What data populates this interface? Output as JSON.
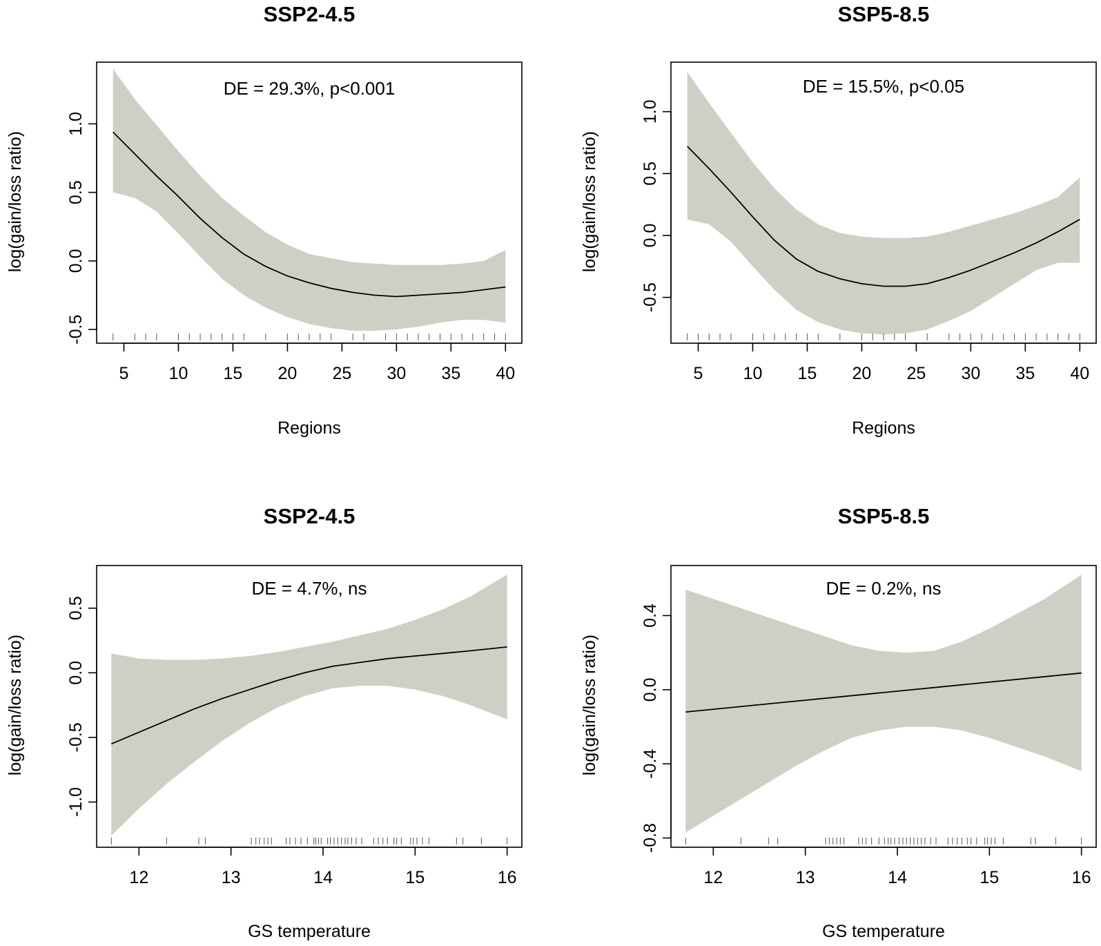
{
  "figure": {
    "background": "#ffffff"
  },
  "style": {
    "band_color": "#cfd0c5",
    "line_color": "#000000",
    "frame_color": "#000000",
    "rug_color": "#555555"
  },
  "chart_data": [
    {
      "type": "line",
      "panel_id": "p1",
      "title": "SSP2-4.5",
      "xlabel": "Regions",
      "ylabel": "log(gain/loss ratio)",
      "annotation": "DE = 29.3%, p<0.001",
      "xlim": [
        2.5,
        41.5
      ],
      "ylim": [
        -0.6,
        1.45
      ],
      "xticks": [
        5,
        10,
        15,
        20,
        25,
        30,
        35,
        40
      ],
      "yticks": [
        -0.5,
        0.0,
        0.5,
        1.0
      ],
      "ytick_labels": [
        "-0.5",
        "0.0",
        "0.5",
        "1.0"
      ],
      "series": [
        {
          "name": "fit",
          "x": [
            4,
            6,
            8,
            10,
            12,
            14,
            16,
            18,
            20,
            22,
            24,
            26,
            28,
            30,
            32,
            34,
            36,
            38,
            40
          ],
          "y": [
            0.94,
            0.78,
            0.62,
            0.47,
            0.31,
            0.17,
            0.05,
            -0.04,
            -0.11,
            -0.16,
            -0.2,
            -0.23,
            -0.25,
            -0.26,
            -0.25,
            -0.24,
            -0.23,
            -0.21,
            -0.19
          ]
        },
        {
          "name": "upper",
          "x": [
            4,
            6,
            8,
            10,
            12,
            14,
            16,
            18,
            20,
            22,
            24,
            26,
            28,
            30,
            32,
            34,
            36,
            38,
            40
          ],
          "y": [
            1.4,
            1.18,
            0.99,
            0.8,
            0.62,
            0.46,
            0.33,
            0.21,
            0.12,
            0.05,
            0.02,
            -0.01,
            -0.02,
            -0.03,
            -0.03,
            -0.03,
            -0.02,
            0.0,
            0.08
          ]
        },
        {
          "name": "lower",
          "x": [
            4,
            6,
            8,
            10,
            12,
            14,
            16,
            18,
            20,
            22,
            24,
            26,
            28,
            30,
            32,
            34,
            36,
            38,
            40
          ],
          "y": [
            0.5,
            0.46,
            0.36,
            0.2,
            0.03,
            -0.13,
            -0.25,
            -0.34,
            -0.41,
            -0.46,
            -0.49,
            -0.51,
            -0.51,
            -0.5,
            -0.48,
            -0.45,
            -0.43,
            -0.43,
            -0.45
          ]
        }
      ],
      "rug": [
        4,
        6,
        7,
        8,
        10,
        11,
        12,
        13,
        14,
        15,
        16,
        18,
        20,
        21,
        22,
        23,
        24,
        26,
        27,
        29,
        30,
        31,
        32,
        33,
        34,
        35,
        36,
        37,
        38,
        39,
        40
      ]
    },
    {
      "type": "line",
      "panel_id": "p2",
      "title": "SSP5-8.5",
      "xlabel": "Regions",
      "ylabel": "log(gain/loss ratio)",
      "annotation": "DE = 15.5%, p<0.05",
      "xlim": [
        2.5,
        41.5
      ],
      "ylim": [
        -0.87,
        1.4
      ],
      "xticks": [
        5,
        10,
        15,
        20,
        25,
        30,
        35,
        40
      ],
      "yticks": [
        -0.5,
        0.0,
        0.5,
        1.0
      ],
      "ytick_labels": [
        "-0.5",
        "0.0",
        "0.5",
        "1.0"
      ],
      "series": [
        {
          "name": "fit",
          "x": [
            4,
            6,
            8,
            10,
            12,
            14,
            16,
            18,
            20,
            22,
            24,
            26,
            28,
            30,
            32,
            34,
            36,
            38,
            40
          ],
          "y": [
            0.72,
            0.54,
            0.35,
            0.15,
            -0.04,
            -0.19,
            -0.29,
            -0.35,
            -0.39,
            -0.41,
            -0.41,
            -0.39,
            -0.34,
            -0.28,
            -0.21,
            -0.14,
            -0.06,
            0.03,
            0.13
          ]
        },
        {
          "name": "upper",
          "x": [
            4,
            6,
            8,
            10,
            12,
            14,
            16,
            18,
            20,
            22,
            24,
            26,
            28,
            30,
            32,
            34,
            36,
            38,
            40
          ],
          "y": [
            1.32,
            1.07,
            0.83,
            0.59,
            0.38,
            0.21,
            0.09,
            0.02,
            -0.01,
            -0.02,
            -0.02,
            -0.01,
            0.03,
            0.08,
            0.13,
            0.18,
            0.24,
            0.31,
            0.47
          ]
        },
        {
          "name": "lower",
          "x": [
            4,
            6,
            8,
            10,
            12,
            14,
            16,
            18,
            20,
            22,
            24,
            26,
            28,
            30,
            32,
            34,
            36,
            38,
            40
          ],
          "y": [
            0.13,
            0.09,
            -0.05,
            -0.25,
            -0.44,
            -0.6,
            -0.7,
            -0.76,
            -0.79,
            -0.8,
            -0.79,
            -0.76,
            -0.69,
            -0.61,
            -0.5,
            -0.39,
            -0.28,
            -0.22,
            -0.22
          ]
        }
      ],
      "rug": [
        4,
        5,
        6,
        7,
        8,
        10,
        11,
        12,
        13,
        14,
        15,
        16,
        18,
        20,
        21,
        22,
        23,
        24,
        26,
        28,
        29,
        30,
        31,
        32,
        33,
        34,
        35,
        36,
        37,
        38,
        39,
        40
      ]
    },
    {
      "type": "line",
      "panel_id": "p3",
      "title": "SSP2-4.5",
      "xlabel": "GS temperature",
      "ylabel": "log(gain/loss ratio)",
      "annotation": "DE = 4.7%, ns",
      "xlim": [
        11.54,
        16.16
      ],
      "ylim": [
        -1.35,
        0.83
      ],
      "xticks": [
        12,
        13,
        14,
        15,
        16
      ],
      "yticks": [
        -1.0,
        -0.5,
        0.0,
        0.5
      ],
      "ytick_labels": [
        "-1.0",
        "-0.5",
        "0.0",
        "0.5"
      ],
      "series": [
        {
          "name": "fit",
          "x": [
            11.7,
            12.0,
            12.3,
            12.6,
            12.9,
            13.2,
            13.5,
            13.8,
            14.1,
            14.4,
            14.7,
            15.0,
            15.3,
            15.6,
            16.0
          ],
          "y": [
            -0.55,
            -0.46,
            -0.37,
            -0.28,
            -0.2,
            -0.13,
            -0.06,
            0.0,
            0.05,
            0.08,
            0.11,
            0.13,
            0.15,
            0.17,
            0.2
          ]
        },
        {
          "name": "upper",
          "x": [
            11.7,
            12.0,
            12.3,
            12.6,
            12.9,
            13.2,
            13.5,
            13.8,
            14.1,
            14.4,
            14.7,
            15.0,
            15.3,
            15.6,
            16.0
          ],
          "y": [
            0.15,
            0.11,
            0.1,
            0.1,
            0.11,
            0.13,
            0.16,
            0.2,
            0.24,
            0.29,
            0.34,
            0.41,
            0.49,
            0.59,
            0.76
          ]
        },
        {
          "name": "lower",
          "x": [
            11.7,
            12.0,
            12.3,
            12.6,
            12.9,
            13.2,
            13.5,
            13.8,
            14.1,
            14.4,
            14.7,
            15.0,
            15.3,
            15.6,
            16.0
          ],
          "y": [
            -1.26,
            -1.05,
            -0.86,
            -0.69,
            -0.53,
            -0.39,
            -0.27,
            -0.18,
            -0.12,
            -0.1,
            -0.1,
            -0.13,
            -0.18,
            -0.25,
            -0.36
          ]
        }
      ],
      "rug": [
        11.7,
        12.3,
        12.65,
        12.72,
        13.22,
        13.27,
        13.31,
        13.36,
        13.4,
        13.44,
        13.6,
        13.64,
        13.7,
        13.76,
        13.83,
        13.9,
        13.92,
        13.95,
        13.98,
        14.05,
        14.08,
        14.12,
        14.16,
        14.2,
        14.24,
        14.27,
        14.31,
        14.36,
        14.42,
        14.55,
        14.6,
        14.65,
        14.7,
        14.77,
        14.8,
        14.85,
        14.95,
        14.98,
        15.02,
        15.08,
        15.15,
        15.45,
        15.52,
        15.72,
        16.0
      ]
    },
    {
      "type": "line",
      "panel_id": "p4",
      "title": "SSP5-8.5",
      "xlabel": "GS temperature",
      "ylabel": "log(gain/loss ratio)",
      "annotation": "DE = 0.2%, ns",
      "xlim": [
        11.54,
        16.16
      ],
      "ylim": [
        -0.85,
        0.67
      ],
      "xticks": [
        12,
        13,
        14,
        15,
        16
      ],
      "yticks": [
        -0.8,
        -0.4,
        0.0,
        0.4
      ],
      "ytick_labels": [
        "-0.8",
        "-0.4",
        "0.0",
        "0.4"
      ],
      "series": [
        {
          "name": "fit",
          "x": [
            11.7,
            16.0
          ],
          "y": [
            -0.12,
            0.09
          ]
        },
        {
          "name": "upper",
          "x": [
            11.7,
            12.0,
            12.3,
            12.6,
            12.9,
            13.2,
            13.5,
            13.8,
            14.1,
            14.4,
            14.7,
            15.0,
            15.3,
            15.6,
            16.0
          ],
          "y": [
            0.54,
            0.49,
            0.44,
            0.39,
            0.34,
            0.29,
            0.24,
            0.21,
            0.2,
            0.21,
            0.26,
            0.33,
            0.41,
            0.49,
            0.62
          ]
        },
        {
          "name": "lower",
          "x": [
            11.7,
            12.0,
            12.3,
            12.6,
            12.9,
            13.2,
            13.5,
            13.8,
            14.1,
            14.4,
            14.7,
            15.0,
            15.3,
            15.6,
            16.0
          ],
          "y": [
            -0.77,
            -0.68,
            -0.59,
            -0.5,
            -0.41,
            -0.33,
            -0.26,
            -0.22,
            -0.2,
            -0.2,
            -0.22,
            -0.26,
            -0.31,
            -0.36,
            -0.44
          ]
        }
      ],
      "rug": [
        11.7,
        12.3,
        12.6,
        12.7,
        13.22,
        13.26,
        13.3,
        13.34,
        13.38,
        13.42,
        13.58,
        13.62,
        13.66,
        13.72,
        13.8,
        13.86,
        13.9,
        13.93,
        13.97,
        14.02,
        14.06,
        14.1,
        14.14,
        14.18,
        14.22,
        14.26,
        14.3,
        14.36,
        14.42,
        14.55,
        14.6,
        14.65,
        14.7,
        14.76,
        14.8,
        14.86,
        14.95,
        14.98,
        15.02,
        15.06,
        15.15,
        15.45,
        15.5,
        15.72,
        16.0
      ]
    }
  ]
}
